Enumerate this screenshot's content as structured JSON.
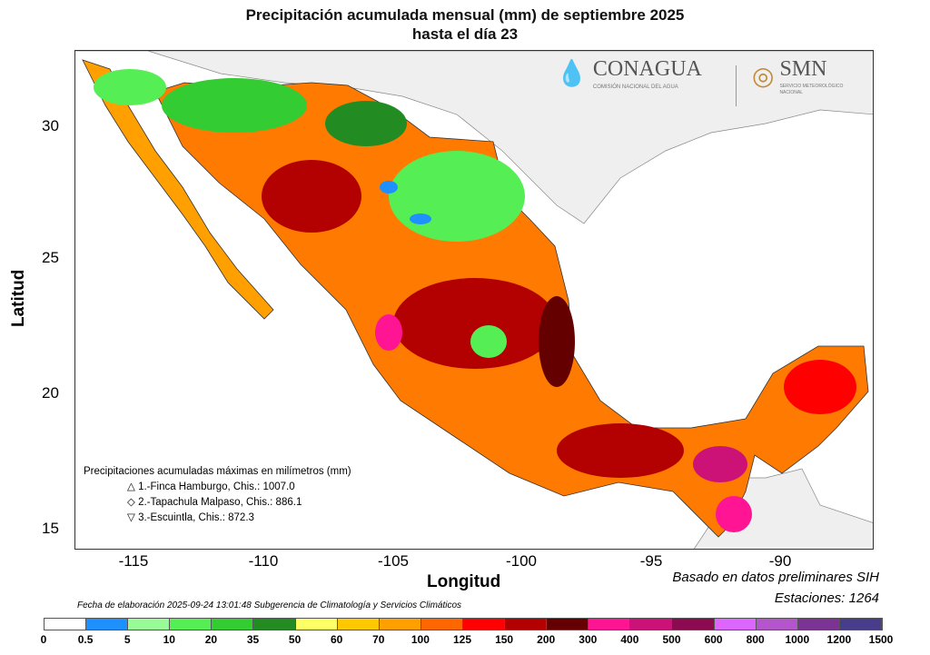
{
  "title": {
    "line1": "Precipitación acumulada mensual (mm) de septiembre 2025",
    "line2": "hasta el día 23"
  },
  "axes": {
    "xlabel": "Longitud",
    "ylabel": "Latitud",
    "xticks": [
      "-115",
      "-110",
      "-105",
      "-100",
      "-95",
      "-90"
    ],
    "yticks": [
      "30",
      "25",
      "20",
      "15"
    ]
  },
  "logos": {
    "conagua": "CONAGUA",
    "conagua_sub": "COMISIÓN NACIONAL DEL AGUA",
    "smn": "SMN",
    "smn_sub": "SERVICIO METEOROLÓGICO NACIONAL"
  },
  "maxima": {
    "heading": "Precipitaciones acumuladas máximas en milímetros (mm)",
    "items": [
      {
        "symbol": "△",
        "text": "1.-Finca Hamburgo, Chis.: 1007.0"
      },
      {
        "symbol": "◇",
        "text": "2.-Tapachula Malpaso, Chis.: 886.1"
      },
      {
        "symbol": "▽",
        "text": "3.-Escuintla, Chis.: 872.3"
      }
    ]
  },
  "notes": {
    "basado": "Basado en datos preliminares SIH",
    "estaciones": "Estaciones:  1264",
    "fecha": "Fecha de elaboración 2025-09-24 13:01:48 Subgerencia de Climatología y Servicios Climáticos"
  },
  "colorbar": {
    "labels": [
      "0",
      "0.5",
      "5",
      "10",
      "20",
      "35",
      "50",
      "60",
      "70",
      "100",
      "125",
      "150",
      "200",
      "300",
      "400",
      "500",
      "600",
      "800",
      "1000",
      "1200",
      "1500"
    ],
    "colors": [
      "#ffffff",
      "#1e90ff",
      "#98fb98",
      "#55ee55",
      "#33cc33",
      "#228b22",
      "#ffff66",
      "#ffc800",
      "#ff9f00",
      "#ff6600",
      "#ff0000",
      "#b30000",
      "#650000",
      "#ff1493",
      "#cc1177",
      "#8b0a50",
      "#dd66ff",
      "#b455cc",
      "#7d3394",
      "#483d8b"
    ]
  }
}
